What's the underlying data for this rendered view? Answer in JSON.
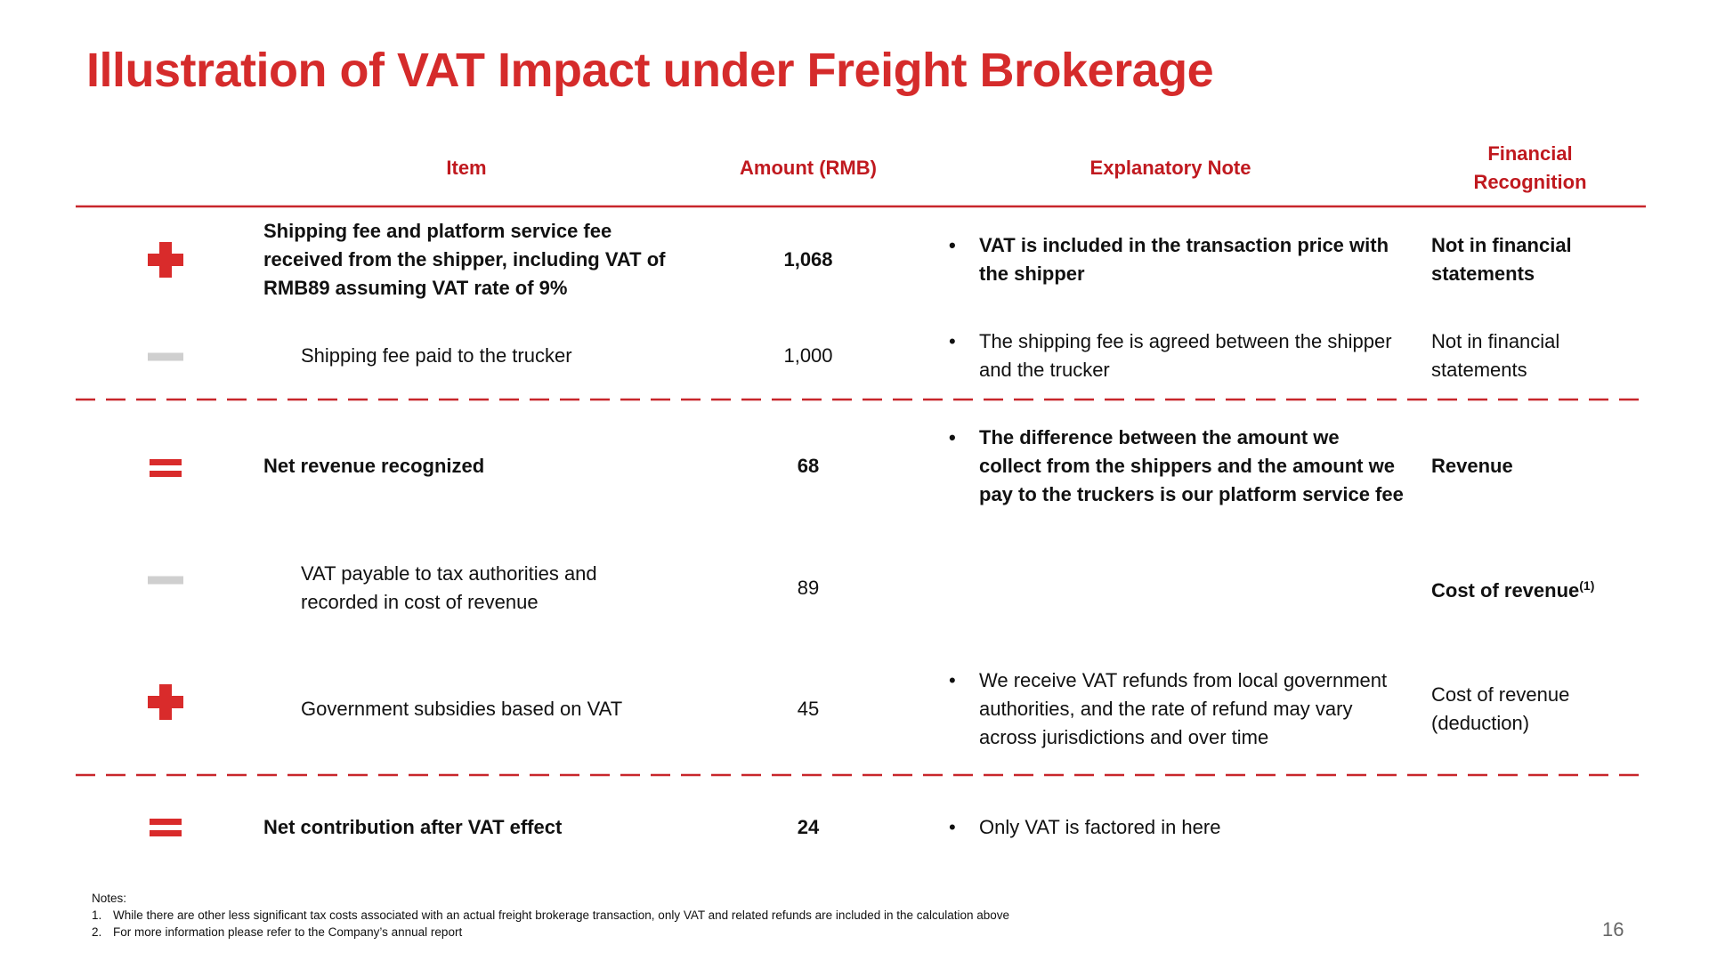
{
  "title": "Illustration of VAT Impact under Freight Brokerage",
  "table": {
    "headers": [
      "Item",
      "Amount (RMB)",
      "Explanatory Note",
      "Financial Recognition"
    ],
    "rows": [
      {
        "item": "Shipping fee and platform service fee received from the shipper, including VAT of RMB89 assuming VAT rate of 9%",
        "amount": "1,068",
        "note": "VAT is included in the transaction price with the shipper",
        "recognition": "Not in financial statements"
      },
      {
        "item": "Shipping fee paid to the trucker",
        "amount": "1,000",
        "note": "The shipping fee is agreed between the shipper and the trucker",
        "recognition": "Not in financial statements"
      },
      {
        "item": "Net revenue recognized",
        "amount": "68",
        "note": "The difference between the amount we collect from the shippers and the amount we pay to the truckers is our platform service fee",
        "recognition": "Revenue"
      },
      {
        "item": "VAT payable to tax authorities and recorded in cost of revenue",
        "amount": "89",
        "recognition": "Cost of revenue",
        "recognition_note": "(1)"
      },
      {
        "item": "Government subsidies based on VAT",
        "amount": "45",
        "note": "We receive VAT refunds from local government authorities, and the rate of refund may vary across jurisdictions and over time",
        "recognition": "Cost of revenue (deduction)"
      },
      {
        "item": "Net contribution after VAT effect",
        "amount": "24",
        "note": "Only VAT is factored in here"
      }
    ]
  },
  "notes": {
    "heading": "Notes:",
    "items": [
      {
        "number": "1.",
        "text": "While there are other less significant tax costs associated with an actual freight brokerage transaction, only VAT and related refunds are included in the calculation above"
      },
      {
        "number": "2.",
        "text": "For more information please refer to the Company’s annual report"
      }
    ]
  },
  "page_number": "16"
}
